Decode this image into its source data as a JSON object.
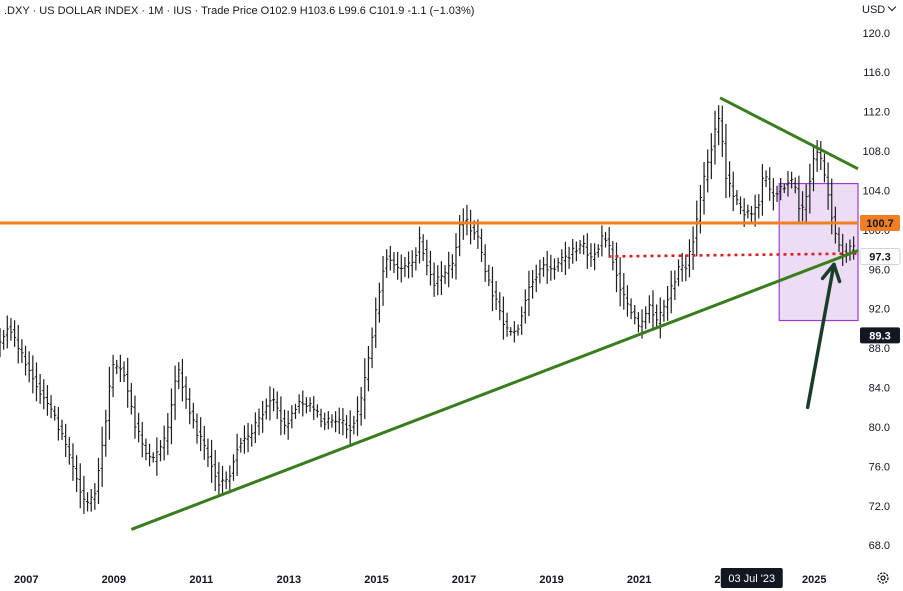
{
  "header": {
    "symbol": ".DXY",
    "name": "US DOLLAR INDEX",
    "interval": "1M",
    "exchange": "IUS",
    "price_type": "Trade Price",
    "open": "O102.9",
    "high": "H103.6",
    "low": "L99.6",
    "close": "C101.9",
    "change": "-1.1 (−1.03%)"
  },
  "currency": "USD",
  "settings_icon": "gear-icon",
  "colors": {
    "candles": "#1e1e1e",
    "orange_line": "#ef7f22",
    "trend_green": "#3a7d1e",
    "dotted_red": "#d81f1f",
    "box_fill": "#e6d0f0",
    "box_border": "#9c3dd6",
    "arrow": "#1a3d2a",
    "label_dark": "#131722"
  },
  "chart_data": {
    "type": "candlestick",
    "title": "",
    "xlabel": "",
    "ylabel": "",
    "x_range": [
      2006.4,
      2026.0
    ],
    "ylim": [
      66.5,
      121.5
    ],
    "y_ticks": [
      "120.0",
      "116.0",
      "112.0",
      "108.0",
      "104.0",
      "100.0",
      "96.0",
      "92.0",
      "88.0",
      "84.0",
      "80.0",
      "76.0",
      "72.0",
      "68.0"
    ],
    "x_ticks": [
      "2007",
      "2009",
      "2011",
      "2013",
      "2015",
      "2017",
      "2019",
      "2021",
      "2023",
      "2025"
    ],
    "grid": false,
    "anchors": [
      [
        2006.4,
        88.5
      ],
      [
        2006.6,
        90.5
      ],
      [
        2006.8,
        88.0
      ],
      [
        2007.1,
        85.5
      ],
      [
        2007.4,
        83.0
      ],
      [
        2007.7,
        80.5
      ],
      [
        2007.9,
        78.0
      ],
      [
        2008.2,
        74.0
      ],
      [
        2008.35,
        72.0
      ],
      [
        2008.55,
        73.0
      ],
      [
        2008.8,
        80.0
      ],
      [
        2008.95,
        86.0
      ],
      [
        2009.2,
        86.0
      ],
      [
        2009.5,
        80.0
      ],
      [
        2009.7,
        77.5
      ],
      [
        2009.9,
        76.5
      ],
      [
        2010.2,
        79.0
      ],
      [
        2010.45,
        86.0
      ],
      [
        2010.7,
        82.0
      ],
      [
        2010.9,
        79.5
      ],
      [
        2011.2,
        76.5
      ],
      [
        2011.4,
        74.5
      ],
      [
        2011.6,
        74.5
      ],
      [
        2011.85,
        78.5
      ],
      [
        2012.1,
        79.0
      ],
      [
        2012.4,
        81.5
      ],
      [
        2012.6,
        83.0
      ],
      [
        2012.9,
        80.0
      ],
      [
        2013.2,
        82.5
      ],
      [
        2013.5,
        82.0
      ],
      [
        2013.8,
        80.5
      ],
      [
        2014.1,
        80.5
      ],
      [
        2014.4,
        80.0
      ],
      [
        2014.6,
        81.5
      ],
      [
        2014.8,
        86.5
      ],
      [
        2015.0,
        92.0
      ],
      [
        2015.2,
        97.5
      ],
      [
        2015.5,
        96.0
      ],
      [
        2015.8,
        96.5
      ],
      [
        2016.0,
        99.0
      ],
      [
        2016.3,
        94.5
      ],
      [
        2016.55,
        95.5
      ],
      [
        2016.75,
        96.5
      ],
      [
        2016.9,
        100.5
      ],
      [
        2017.0,
        101.0
      ],
      [
        2017.3,
        99.5
      ],
      [
        2017.5,
        95.5
      ],
      [
        2017.75,
        92.5
      ],
      [
        2018.0,
        89.5
      ],
      [
        2018.2,
        89.8
      ],
      [
        2018.5,
        94.5
      ],
      [
        2018.8,
        96.5
      ],
      [
        2019.0,
        96.0
      ],
      [
        2019.4,
        97.5
      ],
      [
        2019.7,
        98.5
      ],
      [
        2019.9,
        97.0
      ],
      [
        2020.2,
        99.5
      ],
      [
        2020.4,
        97.0
      ],
      [
        2020.6,
        93.5
      ],
      [
        2020.9,
        91.0
      ],
      [
        2021.0,
        90.0
      ],
      [
        2021.25,
        92.5
      ],
      [
        2021.4,
        90.5
      ],
      [
        2021.6,
        92.5
      ],
      [
        2021.9,
        96.0
      ],
      [
        2022.1,
        96.5
      ],
      [
        2022.3,
        100.5
      ],
      [
        2022.5,
        105.5
      ],
      [
        2022.7,
        109.5
      ],
      [
        2022.85,
        111.5
      ],
      [
        2022.95,
        106.0
      ],
      [
        2023.1,
        104.0
      ],
      [
        2023.3,
        102.0
      ],
      [
        2023.55,
        101.5
      ],
      [
        2023.75,
        103.0
      ],
      [
        2023.85,
        106.0
      ],
      [
        2024.0,
        103.5
      ],
      [
        2024.2,
        104.0
      ],
      [
        2024.4,
        105.0
      ],
      [
        2024.55,
        104.5
      ],
      [
        2024.7,
        101.5
      ],
      [
        2024.85,
        104.0
      ],
      [
        2025.0,
        107.5
      ],
      [
        2025.1,
        108.0
      ],
      [
        2025.3,
        104.0
      ],
      [
        2025.45,
        100.0
      ],
      [
        2025.6,
        98.0
      ],
      [
        2025.75,
        97.5
      ],
      [
        2025.9,
        98.5
      ]
    ],
    "price_labels": [
      "100.7",
      "97.3",
      "89.3"
    ],
    "crosshair_date_label": "03 Jul '23",
    "annotations": {
      "horizontal_line": 100.7,
      "dotted_support": {
        "from": [
          2020.3,
          97.3
        ],
        "to": [
          2026.0,
          97.6
        ]
      },
      "rising_trendline": {
        "from": [
          2009.4,
          69.6
        ],
        "to": [
          2026.0,
          97.9
        ]
      },
      "falling_trendline": {
        "from": [
          2022.85,
          113.4
        ],
        "to": [
          2026.0,
          106.2
        ]
      },
      "highlight_box": {
        "from": [
          2024.2,
          90.8
        ],
        "to": [
          2026.0,
          104.7
        ]
      },
      "arrow": {
        "from": [
          2024.85,
          82.0
        ],
        "to": [
          2025.45,
          96.5
        ]
      }
    }
  }
}
